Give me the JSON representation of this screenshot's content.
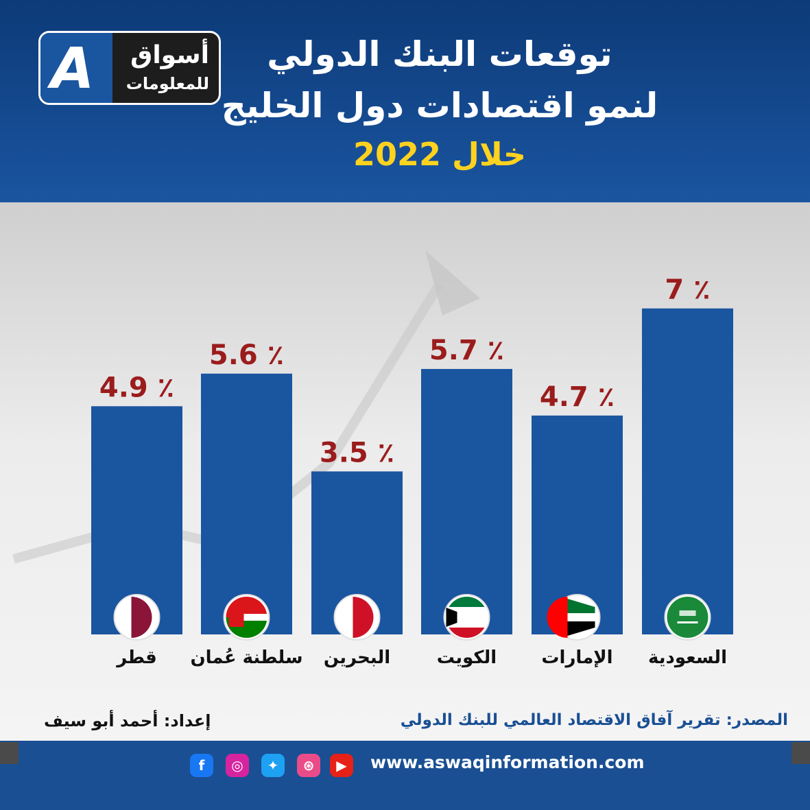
{
  "header": {
    "title_line1": "توقعات البنك الدولي",
    "title_line2": "لنمو اقتصادات دول الخليج",
    "title_line3": "خلال 2022"
  },
  "logo": {
    "line1": "أسواق",
    "line2": "للمعلومات",
    "mark": "A"
  },
  "chart_data": {
    "type": "bar",
    "categories": [
      "قطر",
      "سلطنة عُمان",
      "البحرين",
      "الكويت",
      "الإمارات",
      "السعودية"
    ],
    "values": [
      4.9,
      5.6,
      3.5,
      5.7,
      4.7,
      7
    ],
    "value_labels": [
      "٪ 4.9",
      "٪ 5.6",
      "٪ 3.5",
      "٪ 5.7",
      "٪ 4.7",
      "٪ 7"
    ],
    "flag_icons": [
      "qatar-flag-icon",
      "oman-flag-icon",
      "bahrain-flag-icon",
      "kuwait-flag-icon",
      "uae-flag-icon",
      "saudi-flag-icon"
    ],
    "title": "",
    "xlabel": "",
    "ylabel": "",
    "grid": false,
    "colors": {
      "bar": "#1a55a0",
      "value_label": "#9b1c1c"
    }
  },
  "footer": {
    "source": "المصدر: تقرير آفاق الاقتصاد العالمي للبنك الدولي",
    "author": "إعداد: أحمد أبو سيف",
    "url": "www.aswaqinformation.com",
    "social_icons": [
      "facebook-icon",
      "instagram-icon",
      "twitter-icon",
      "dribbble-icon",
      "youtube-icon"
    ]
  },
  "colors": {
    "brand_blue": "#1a4f93",
    "title_yellow": "#ffd21f",
    "label_red": "#9b1c1c"
  }
}
